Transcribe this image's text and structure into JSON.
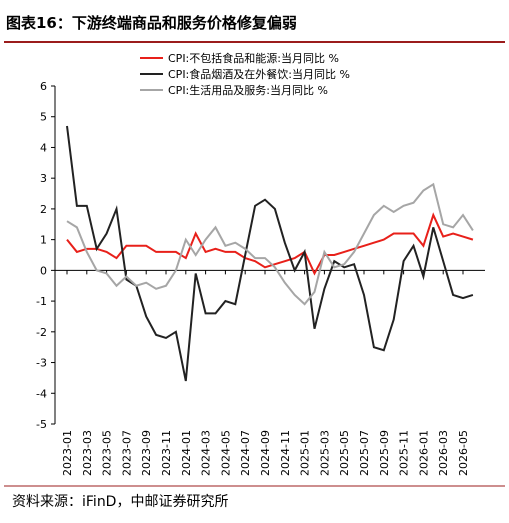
{
  "chart_data": {
    "type": "line",
    "title": "图表16：下游终端商品和服务价格修复偏弱",
    "source": "资料来源：iFinD，中邮证券研究所",
    "categories": [
      "2023-01",
      null,
      "2023-03",
      null,
      "2023-05",
      null,
      "2023-07",
      null,
      "2023-09",
      null,
      "2023-11",
      null,
      "2024-01",
      null,
      "2024-03",
      null,
      "2024-05",
      null,
      "2024-07",
      null,
      "2024-09",
      null,
      "2024-11",
      null,
      "2025-01",
      null,
      "2025-03",
      null,
      "2025-05",
      null,
      "2025-07",
      null,
      "2025-09",
      null,
      "2025-11",
      null,
      "2026-01",
      null,
      "2026-03",
      null,
      "2026-05",
      null
    ],
    "ylim": [
      -5,
      6
    ],
    "yticks": [
      -5,
      -4,
      -3,
      -2,
      -1,
      0,
      1,
      2,
      3,
      4,
      5,
      6
    ],
    "series": [
      {
        "name": "CPI:不包括食品和能源:当月同比 %",
        "color": "#e8201a",
        "values": [
          1.0,
          0.6,
          0.7,
          0.7,
          0.6,
          0.4,
          0.8,
          0.8,
          0.8,
          0.6,
          0.6,
          0.6,
          0.4,
          1.2,
          0.6,
          0.7,
          0.6,
          0.6,
          0.4,
          0.3,
          0.1,
          0.2,
          0.3,
          0.4,
          0.6,
          -0.1,
          0.5,
          0.5,
          0.6,
          0.7,
          0.8,
          0.9,
          1.0,
          1.2,
          1.2,
          1.2,
          0.8,
          1.8,
          1.1,
          1.2,
          1.1,
          1.0
        ]
      },
      {
        "name": "CPI:食品烟酒及在外餐饮:当月同比 %",
        "color": "#222222",
        "values": [
          4.7,
          2.1,
          2.1,
          0.7,
          1.2,
          2.0,
          -0.3,
          -0.5,
          -1.5,
          -2.1,
          -2.2,
          -2.0,
          -3.6,
          -0.1,
          -1.4,
          -1.4,
          -1.0,
          -1.1,
          0.5,
          2.1,
          2.3,
          2.0,
          0.9,
          0.0,
          0.6,
          -1.9,
          -0.6,
          0.3,
          0.1,
          0.2,
          -0.8,
          -2.5,
          -2.6,
          -1.6,
          0.3,
          0.8,
          -0.2,
          1.4,
          0.3,
          -0.8,
          -0.9,
          -0.8
        ]
      },
      {
        "name": "CPI:生活用品及服务:当月同比 %",
        "color": "#a6a6a6",
        "values": [
          1.6,
          1.4,
          0.6,
          0.0,
          -0.1,
          -0.5,
          -0.2,
          -0.5,
          -0.4,
          -0.6,
          -0.5,
          0.0,
          1.0,
          0.5,
          1.0,
          1.4,
          0.8,
          0.9,
          0.7,
          0.4,
          0.4,
          0.1,
          -0.4,
          -0.8,
          -1.1,
          -0.7,
          0.6,
          0.1,
          0.2,
          0.6,
          1.2,
          1.8,
          2.1,
          1.9,
          2.1,
          2.2,
          2.6,
          2.8,
          1.5,
          1.4,
          1.8,
          1.3
        ]
      }
    ]
  }
}
